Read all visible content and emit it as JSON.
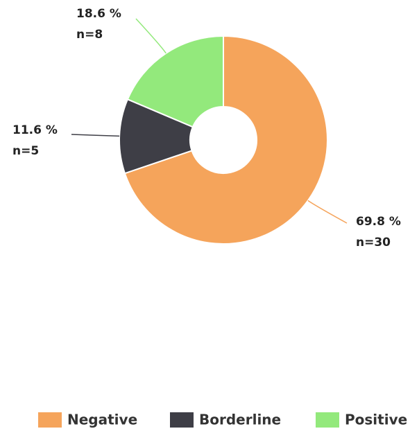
{
  "chart_data": {
    "type": "donut",
    "categories": [
      "Negative",
      "Borderline",
      "Positive"
    ],
    "values": [
      69.8,
      11.6,
      18.6
    ],
    "value_labels": [
      "69.8 %",
      "11.6 %",
      "18.6 %"
    ],
    "counts": [
      30,
      5,
      8
    ],
    "count_labels": [
      "n=30",
      "n=5",
      "n=8"
    ],
    "colors": [
      "#f5a45b",
      "#3e3e46",
      "#93e97c"
    ],
    "legend": "bottom"
  }
}
